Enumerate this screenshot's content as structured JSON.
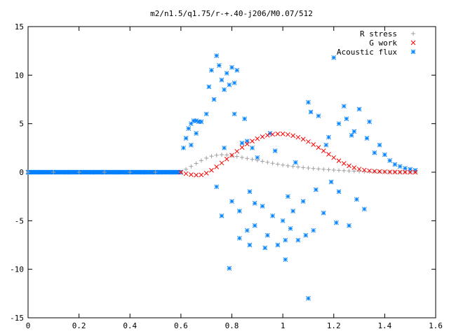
{
  "chart_data": {
    "type": "scatter",
    "title": "m2/n1.5/q1.75/r-+.40-j206/M0.07/512",
    "xlabel": "",
    "ylabel": "",
    "xlim": [
      0,
      1.6
    ],
    "ylim": [
      -15,
      15
    ],
    "x_ticks": [
      "0",
      "0.2",
      "0.4",
      "0.6",
      "0.8",
      "1",
      "1.2",
      "1.4",
      "1.6"
    ],
    "y_ticks": [
      "15",
      "10",
      "5",
      "0",
      "-5",
      "-10",
      "-15"
    ],
    "grid": false,
    "legend_position": "top-right",
    "series": [
      {
        "name": "R stress",
        "color": "#a0a0a0",
        "marker": "plus",
        "x": [
          0.0,
          0.1,
          0.2,
          0.3,
          0.4,
          0.5,
          0.6,
          0.62,
          0.64,
          0.66,
          0.68,
          0.7,
          0.72,
          0.74,
          0.76,
          0.78,
          0.8,
          0.82,
          0.84,
          0.86,
          0.88,
          0.9,
          0.92,
          0.94,
          0.96,
          0.98,
          1.0,
          1.02,
          1.04,
          1.06,
          1.08,
          1.1,
          1.12,
          1.14,
          1.16,
          1.18,
          1.2,
          1.22,
          1.24,
          1.26,
          1.28,
          1.3,
          1.32,
          1.34,
          1.36,
          1.38,
          1.4,
          1.42,
          1.44,
          1.46,
          1.48,
          1.5,
          1.52
        ],
        "y": [
          0,
          0,
          0,
          0,
          0,
          0,
          0,
          0.3,
          0.6,
          0.9,
          1.2,
          1.45,
          1.65,
          1.75,
          1.8,
          1.78,
          1.72,
          1.62,
          1.52,
          1.42,
          1.32,
          1.22,
          1.12,
          1.02,
          0.92,
          0.82,
          0.74,
          0.66,
          0.6,
          0.54,
          0.48,
          0.43,
          0.38,
          0.34,
          0.3,
          0.26,
          0.22,
          0.19,
          0.16,
          0.13,
          0.11,
          0.09,
          0.07,
          0.06,
          0.05,
          0.04,
          0.03,
          0.02,
          0.02,
          0.01,
          0.01,
          0.0,
          0.0
        ]
      },
      {
        "name": "G work",
        "color": "#ff0000",
        "marker": "cross",
        "x": [
          0.6,
          0.62,
          0.64,
          0.66,
          0.68,
          0.7,
          0.72,
          0.74,
          0.76,
          0.78,
          0.8,
          0.82,
          0.84,
          0.86,
          0.88,
          0.9,
          0.92,
          0.94,
          0.96,
          0.98,
          1.0,
          1.02,
          1.04,
          1.06,
          1.08,
          1.1,
          1.12,
          1.14,
          1.16,
          1.18,
          1.2,
          1.22,
          1.24,
          1.26,
          1.28,
          1.3,
          1.32,
          1.34,
          1.36,
          1.38,
          1.4,
          1.42,
          1.44,
          1.46,
          1.48,
          1.5,
          1.52
        ],
        "y": [
          0,
          -0.15,
          -0.25,
          -0.3,
          -0.28,
          -0.1,
          0.2,
          0.55,
          0.95,
          1.35,
          1.75,
          2.15,
          2.55,
          2.9,
          3.2,
          3.45,
          3.65,
          3.8,
          3.9,
          3.95,
          3.95,
          3.88,
          3.76,
          3.6,
          3.4,
          3.15,
          2.85,
          2.55,
          2.2,
          1.85,
          1.5,
          1.18,
          0.9,
          0.66,
          0.47,
          0.32,
          0.22,
          0.15,
          0.1,
          0.07,
          0.05,
          0.03,
          0.02,
          0.01,
          0.01,
          0.0,
          0.0
        ]
      },
      {
        "name": "Acoustic flux",
        "color": "#0080ff",
        "marker": "star",
        "x": [
          0.0,
          0.05,
          0.1,
          0.15,
          0.2,
          0.25,
          0.3,
          0.35,
          0.4,
          0.45,
          0.5,
          0.55,
          0.6,
          0.61,
          0.62,
          0.63,
          0.64,
          0.65,
          0.66,
          0.67,
          0.68,
          0.66,
          0.64,
          0.7,
          0.71,
          0.72,
          0.73,
          0.74,
          0.75,
          0.76,
          0.77,
          0.78,
          0.79,
          0.8,
          0.81,
          0.82,
          0.83,
          0.84,
          0.85,
          0.86,
          0.87,
          0.88,
          0.89,
          0.9,
          0.92,
          0.94,
          0.96,
          0.98,
          1.0,
          1.02,
          1.04,
          1.06,
          1.08,
          1.1,
          1.12,
          1.14,
          1.16,
          1.18,
          1.2,
          1.22,
          1.24,
          1.26,
          1.28,
          1.3,
          1.32,
          1.34,
          1.36,
          1.38,
          1.4,
          1.42,
          1.44,
          1.46,
          1.48,
          1.5,
          1.52,
          0.74,
          0.77,
          0.8,
          0.83,
          0.86,
          0.89,
          0.93,
          0.97,
          1.01,
          1.05,
          1.09,
          1.13,
          1.17,
          1.21,
          1.25,
          1.29,
          1.33,
          0.76,
          0.81,
          0.87,
          0.95,
          1.03,
          1.11,
          1.19,
          1.27,
          0.79,
          1.1,
          1.01,
          1.22
        ],
        "y": [
          0,
          0,
          0,
          0,
          0,
          0,
          0,
          0,
          0,
          0,
          0,
          0,
          0,
          2.5,
          3.5,
          4.5,
          5.0,
          5.3,
          5.3,
          5.2,
          5.2,
          4.0,
          2.8,
          6.0,
          8.8,
          10.5,
          7.5,
          12.0,
          11.0,
          9.5,
          8.5,
          10.2,
          9.0,
          10.8,
          9.2,
          10.5,
          -4.0,
          3.0,
          5.5,
          -6.0,
          -2.0,
          2.5,
          -5.5,
          1.5,
          -3.5,
          -6.5,
          -4.5,
          -7.5,
          -5.0,
          -2.5,
          -4.0,
          -7.0,
          -3.0,
          7.2,
          -6.0,
          5.8,
          -4.2,
          3.6,
          11.8,
          -2.0,
          6.8,
          -5.5,
          4.2,
          6.5,
          -3.8,
          5.2,
          2.0,
          2.8,
          1.8,
          1.2,
          0.8,
          0.6,
          0.4,
          0.3,
          0.2,
          -1.5,
          2.5,
          -3.0,
          -6.8,
          3.2,
          -3.2,
          -7.8,
          2.2,
          -9.0,
          1.0,
          -6.5,
          -1.8,
          2.8,
          -5.2,
          5.5,
          -2.8,
          3.5,
          -4.5,
          6.0,
          -7.5,
          4.0,
          -5.8,
          6.2,
          -1.0,
          3.8,
          -9.9,
          -13.0,
          -7.0,
          5.0
        ]
      }
    ]
  }
}
